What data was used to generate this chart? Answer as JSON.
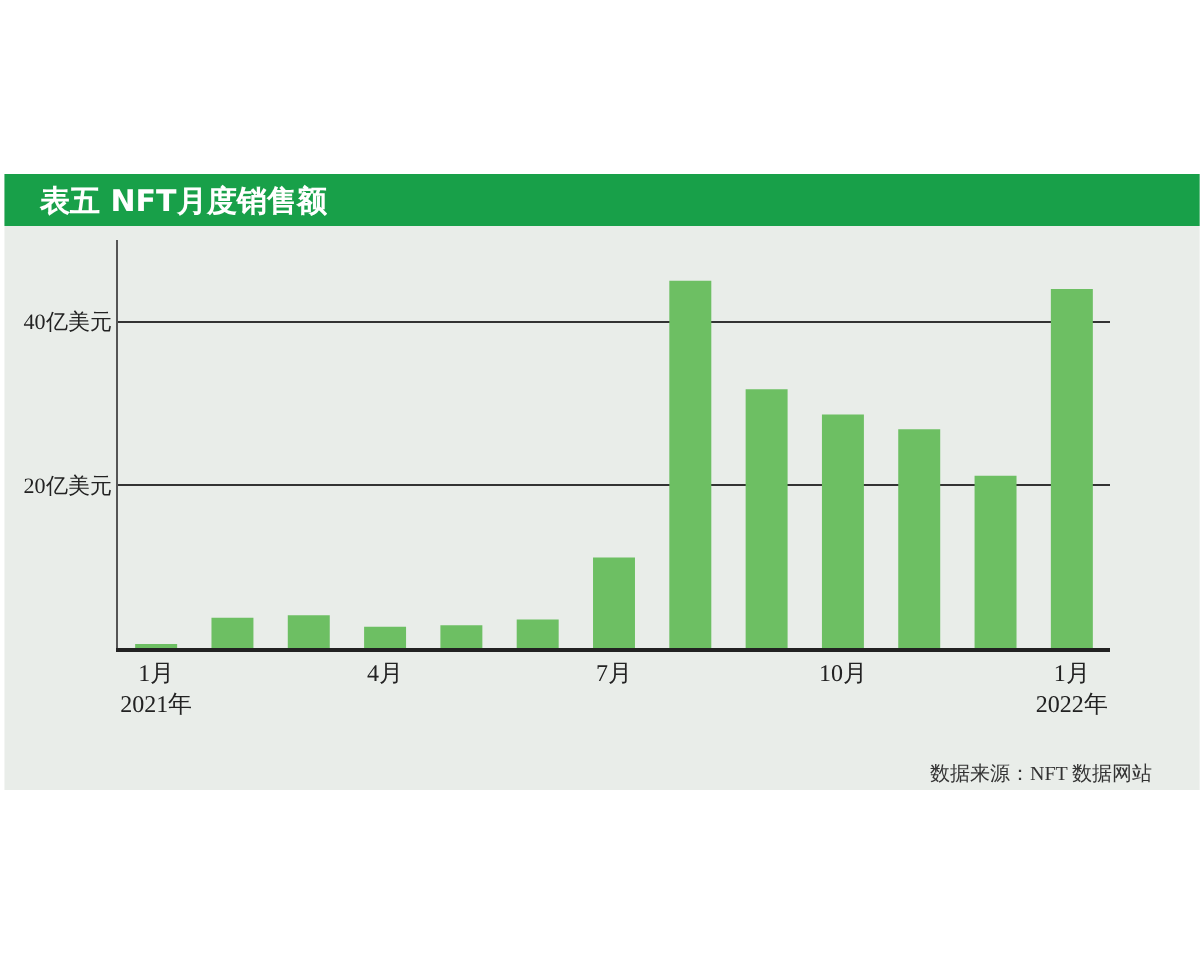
{
  "chart_data": {
    "type": "bar",
    "title": "表五 NFT月度销售额",
    "categories": [
      "1月\n2021年",
      null,
      null,
      "4月",
      null,
      null,
      "7月",
      null,
      null,
      "10月",
      null,
      null,
      "1月\n2022年"
    ],
    "values": [
      0.4,
      3.7,
      4.0,
      2.6,
      2.8,
      3.5,
      11.1,
      45.0,
      31.7,
      28.6,
      26.8,
      21.1,
      44.0
    ],
    "color": "#6dbf63",
    "ylim": [
      0,
      50
    ],
    "yticks": [
      {
        "value": 20,
        "label": "20亿美元"
      },
      {
        "value": 40,
        "label": "40亿美元"
      }
    ],
    "grid": "y",
    "annotations": [
      "数据来源：NFT 数据网站"
    ]
  }
}
